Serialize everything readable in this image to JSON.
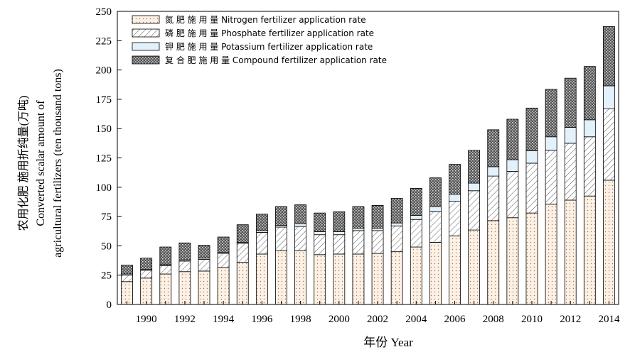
{
  "chart_data": {
    "type": "bar",
    "stacked": true,
    "x": [
      1989,
      1990,
      1991,
      1992,
      1993,
      1994,
      1995,
      1996,
      1997,
      1998,
      1999,
      2000,
      2001,
      2002,
      2003,
      2004,
      2005,
      2006,
      2007,
      2008,
      2009,
      2010,
      2011,
      2012,
      2013,
      2014
    ],
    "x_tick_labels": [
      "1990",
      "1992",
      "1994",
      "1996",
      "1998",
      "2000",
      "2002",
      "2004",
      "2006",
      "2008",
      "2010",
      "2012",
      "2014"
    ],
    "xlabel": "年份 Year",
    "ylabel_lines": [
      "农用化肥 施用折纯量(万吨)",
      "Converted scalar amount of",
      "agricultural fertilizers (ten thousand tons)"
    ],
    "ylim": [
      0,
      250
    ],
    "y_ticks": [
      "0",
      "25",
      "50",
      "75",
      "100",
      "125",
      "150",
      "175",
      "200",
      "225",
      "250"
    ],
    "legend_position": "top-left",
    "series": [
      {
        "name": "氮 肥 施 用 量  Nitrogen fertilizer application rate",
        "pattern": "dots",
        "values": [
          19.5,
          22.5,
          26,
          28,
          28.5,
          31.5,
          36,
          43,
          46,
          46,
          42.5,
          43,
          43,
          43.5,
          45,
          49,
          53,
          58.5,
          63.5,
          71.5,
          74,
          78,
          85.5,
          89,
          92.5,
          106
        ]
      },
      {
        "name": "磷 肥 施 用 量  Phosphate fertilizer application rate",
        "pattern": "hatch",
        "values": [
          5.5,
          6.5,
          7,
          9,
          10,
          12,
          16,
          18.5,
          20,
          20.5,
          17,
          16.5,
          20,
          19.5,
          22,
          23.5,
          26,
          29.5,
          33.5,
          38,
          39.5,
          42.5,
          46,
          48.5,
          50.5,
          61
        ]
      },
      {
        "name": "钾 肥 施 用 量  Potassium fertilizer application rate",
        "pattern": "light-blue",
        "values": [
          1,
          1,
          1,
          1,
          1,
          1,
          1,
          1.5,
          1.5,
          2.5,
          2.5,
          2.5,
          2,
          2,
          2.5,
          3.5,
          4.5,
          6,
          6.5,
          8,
          10,
          10.5,
          11.5,
          13.5,
          14.5,
          19.5
        ]
      },
      {
        "name": "复 合 肥 施 用 量  Compound fertilizer application rate",
        "pattern": "dark-dots",
        "values": [
          7.5,
          9.5,
          15,
          14.5,
          11,
          13,
          15,
          14,
          16,
          16,
          16,
          17,
          18.5,
          19.5,
          21,
          23,
          24.5,
          25.5,
          28,
          31.5,
          34.5,
          36.5,
          40.5,
          42,
          45.5,
          50.5
        ]
      }
    ],
    "colors": {
      "nitrogen_fill": "#fdf0e4",
      "phosphate_fill": "#ffffff",
      "potassium_fill": "#e3f1fb",
      "compound_fill": "#6b6b6b",
      "stroke": "#000000"
    }
  }
}
